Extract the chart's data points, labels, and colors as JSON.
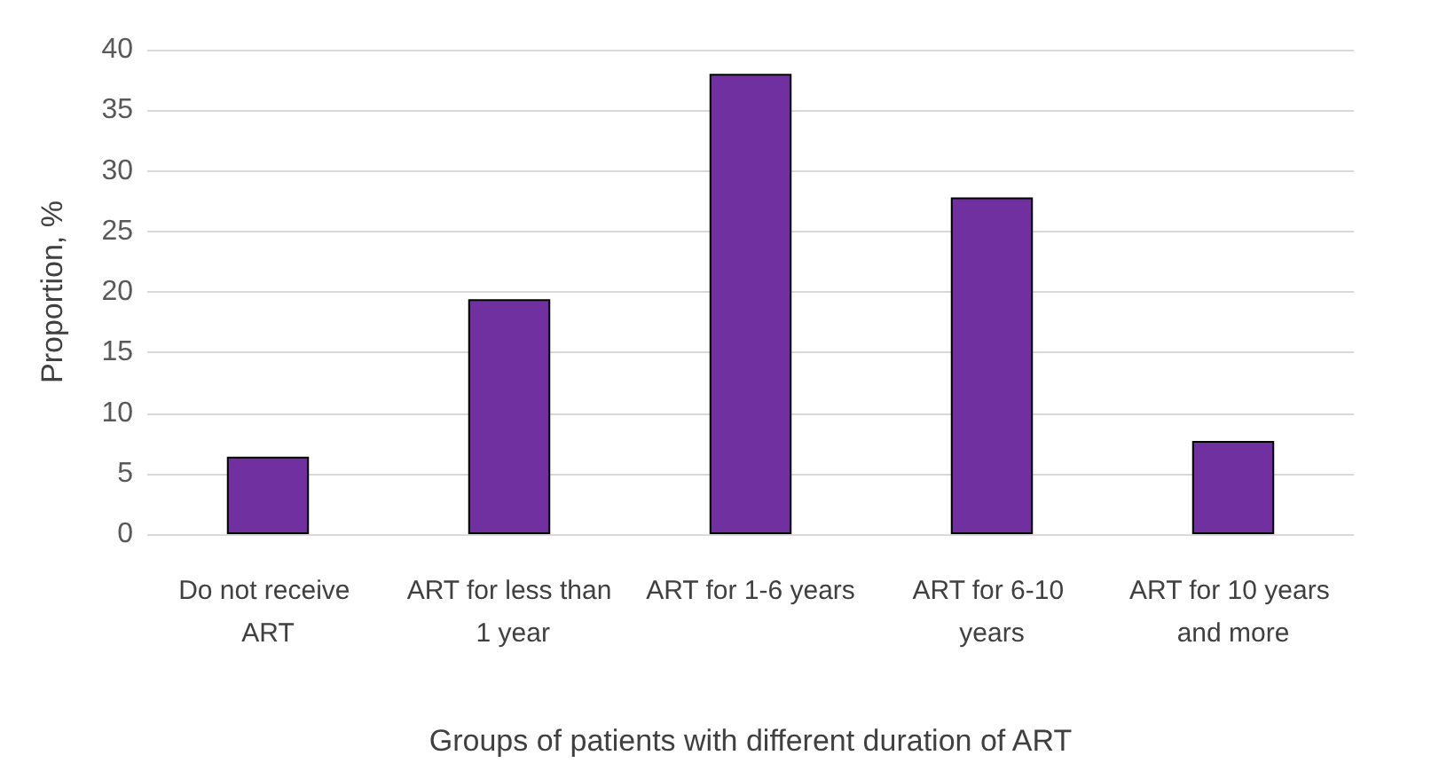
{
  "chart_data": {
    "type": "bar",
    "categories": [
      "Do not receive ART",
      "ART for less than 1 year",
      "ART for 1-6 years",
      "ART for 6-10 years",
      "ART for 10 years and more"
    ],
    "values": [
      6.4,
      19.4,
      38,
      27.8,
      7.7
    ],
    "color": "#7030a0",
    "xlabel": "Groups of patients with different duration of ART",
    "ylabel": "Proportion, %",
    "ylim": [
      0,
      40
    ],
    "yticks": [
      0,
      5,
      10,
      15,
      20,
      25,
      30,
      35,
      40
    ],
    "grid": "y"
  }
}
